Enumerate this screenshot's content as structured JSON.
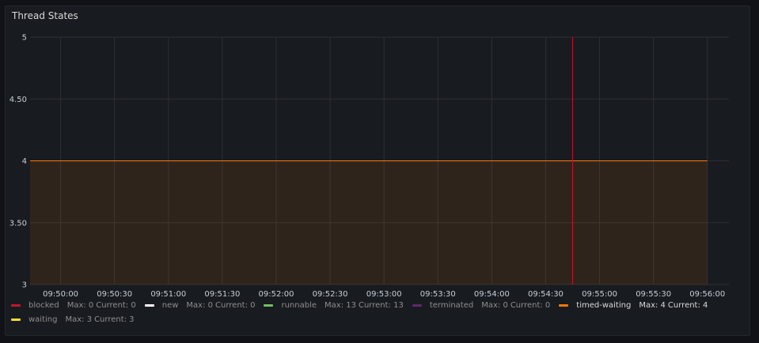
{
  "panel": {
    "title": "Thread States"
  },
  "colors": {
    "grid": "#2d2f36",
    "blocked": "#c4162a",
    "new": "#ffffff",
    "runnable": "#73bf69",
    "terminated": "#8f3bb8",
    "timed_waiting": "#ff780a",
    "waiting": "#fade2a"
  },
  "legend": [
    {
      "name": "blocked",
      "color": "#c4162a",
      "max": "Max: 0",
      "current": "Current: 0",
      "active": false
    },
    {
      "name": "new",
      "color": "#ffffff",
      "max": "Max: 0",
      "current": "Current: 0",
      "active": false
    },
    {
      "name": "runnable",
      "color": "#73bf69",
      "max": "Max: 13",
      "current": "Current: 13",
      "active": false
    },
    {
      "name": "terminated",
      "color": "#5e2a6e",
      "max": "Max: 0",
      "current": "Current: 0",
      "active": false
    },
    {
      "name": "timed-waiting",
      "color": "#ff780a",
      "max": "Max: 4",
      "current": "Current: 4",
      "active": true
    },
    {
      "name": "waiting",
      "color": "#fade2a",
      "max": "Max: 3",
      "current": "Current: 3",
      "active": false
    }
  ],
  "chart_data": {
    "type": "area",
    "title": "Thread States",
    "xlabel": "",
    "ylabel": "",
    "x_ticks": [
      "09:50:00",
      "09:50:30",
      "09:51:00",
      "09:51:30",
      "09:52:00",
      "09:52:30",
      "09:53:00",
      "09:53:30",
      "09:54:00",
      "09:54:30",
      "09:55:00",
      "09:55:30",
      "09:56:00"
    ],
    "y_ticks": [
      "3",
      "3.50",
      "4",
      "4.50",
      "5"
    ],
    "ylim": [
      3,
      5
    ],
    "xlim": [
      "09:49:43",
      "09:56:12"
    ],
    "grid": true,
    "legend_position": "bottom",
    "series": [
      {
        "name": "timed-waiting",
        "x": [
          "09:49:43",
          "09:56:00"
        ],
        "values": [
          4,
          4
        ]
      }
    ],
    "annotations": [
      {
        "type": "vertical-line",
        "x": "09:54:45",
        "color": "#c4162a"
      }
    ]
  }
}
